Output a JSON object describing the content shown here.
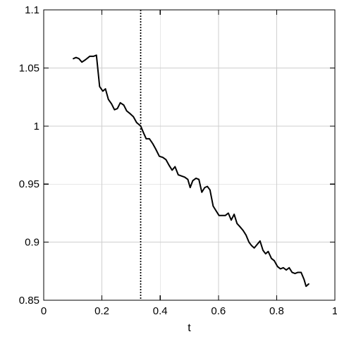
{
  "chart_data": {
    "type": "line",
    "title": "",
    "xlabel": "t",
    "ylabel": "",
    "xlim": [
      0,
      1
    ],
    "ylim": [
      0.85,
      1.1
    ],
    "grid": true,
    "x_ticks": [
      0,
      0.2,
      0.4,
      0.6,
      0.8,
      1
    ],
    "x_tick_labels": [
      "0",
      "0.2",
      "0.4",
      "0.6",
      "0.8",
      "1"
    ],
    "y_ticks": [
      0.85,
      0.9,
      0.95,
      1,
      1.05,
      1.1
    ],
    "y_tick_labels": [
      "0.85",
      "0.9",
      "0.95",
      "1",
      "1.05",
      "1.1"
    ],
    "vertical_reference_line": {
      "x": 0.333,
      "style": "dotted"
    },
    "series": [
      {
        "color": "#000000",
        "points": [
          [
            0.102,
            1.058
          ],
          [
            0.111,
            1.059
          ],
          [
            0.121,
            1.058
          ],
          [
            0.131,
            1.055
          ],
          [
            0.143,
            1.057
          ],
          [
            0.158,
            1.06
          ],
          [
            0.171,
            1.06
          ],
          [
            0.181,
            1.061
          ],
          [
            0.192,
            1.034
          ],
          [
            0.203,
            1.03
          ],
          [
            0.212,
            1.032
          ],
          [
            0.222,
            1.023
          ],
          [
            0.233,
            1.019
          ],
          [
            0.243,
            1.014
          ],
          [
            0.253,
            1.015
          ],
          [
            0.263,
            1.02
          ],
          [
            0.275,
            1.018
          ],
          [
            0.285,
            1.013
          ],
          [
            0.295,
            1.011
          ],
          [
            0.308,
            1.008
          ],
          [
            0.319,
            1.003
          ],
          [
            0.333,
            1.0
          ],
          [
            0.343,
            0.994
          ],
          [
            0.352,
            0.989
          ],
          [
            0.363,
            0.989
          ],
          [
            0.374,
            0.985
          ],
          [
            0.385,
            0.98
          ],
          [
            0.397,
            0.974
          ],
          [
            0.409,
            0.973
          ],
          [
            0.42,
            0.971
          ],
          [
            0.431,
            0.966
          ],
          [
            0.441,
            0.962
          ],
          [
            0.451,
            0.965
          ],
          [
            0.462,
            0.958
          ],
          [
            0.473,
            0.957
          ],
          [
            0.484,
            0.956
          ],
          [
            0.495,
            0.954
          ],
          [
            0.503,
            0.947
          ],
          [
            0.512,
            0.953
          ],
          [
            0.523,
            0.955
          ],
          [
            0.533,
            0.954
          ],
          [
            0.543,
            0.943
          ],
          [
            0.553,
            0.947
          ],
          [
            0.562,
            0.948
          ],
          [
            0.571,
            0.945
          ],
          [
            0.582,
            0.931
          ],
          [
            0.592,
            0.927
          ],
          [
            0.602,
            0.923
          ],
          [
            0.613,
            0.923
          ],
          [
            0.624,
            0.923
          ],
          [
            0.634,
            0.925
          ],
          [
            0.644,
            0.919
          ],
          [
            0.654,
            0.924
          ],
          [
            0.664,
            0.916
          ],
          [
            0.675,
            0.913
          ],
          [
            0.685,
            0.91
          ],
          [
            0.695,
            0.906
          ],
          [
            0.705,
            0.9
          ],
          [
            0.714,
            0.897
          ],
          [
            0.723,
            0.895
          ],
          [
            0.733,
            0.898
          ],
          [
            0.743,
            0.901
          ],
          [
            0.753,
            0.893
          ],
          [
            0.762,
            0.89
          ],
          [
            0.771,
            0.892
          ],
          [
            0.782,
            0.886
          ],
          [
            0.792,
            0.884
          ],
          [
            0.803,
            0.879
          ],
          [
            0.813,
            0.877
          ],
          [
            0.823,
            0.878
          ],
          [
            0.833,
            0.876
          ],
          [
            0.843,
            0.878
          ],
          [
            0.853,
            0.874
          ],
          [
            0.863,
            0.873
          ],
          [
            0.873,
            0.874
          ],
          [
            0.884,
            0.874
          ],
          [
            0.894,
            0.868
          ],
          [
            0.901,
            0.862
          ],
          [
            0.91,
            0.864
          ]
        ]
      }
    ]
  }
}
